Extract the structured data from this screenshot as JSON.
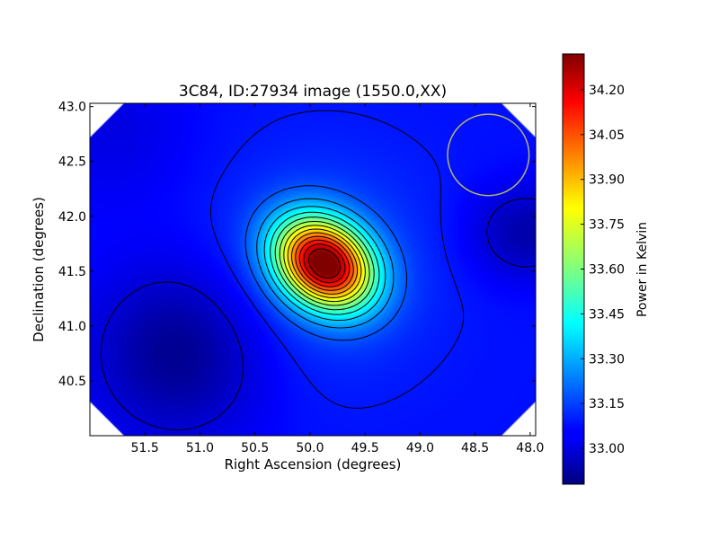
{
  "chart_data": {
    "type": "heatmap",
    "title": "3C84, ID:27934 image (1550.0,XX)",
    "xlabel": "Right Ascension (degrees)",
    "ylabel": "Declination (degrees)",
    "xlim": [
      52.0,
      47.95
    ],
    "ylim": [
      40.0,
      43.03
    ],
    "x_ticks": [
      {
        "value": 51.5,
        "label": "51.5"
      },
      {
        "value": 51.0,
        "label": "51.0"
      },
      {
        "value": 50.5,
        "label": "50.5"
      },
      {
        "value": 50.0,
        "label": "50.0"
      },
      {
        "value": 49.5,
        "label": "49.5"
      },
      {
        "value": 49.0,
        "label": "49.0"
      },
      {
        "value": 48.5,
        "label": "48.5"
      },
      {
        "value": 48.0,
        "label": "48.0"
      }
    ],
    "y_ticks": [
      {
        "value": 40.5,
        "label": "40.5"
      },
      {
        "value": 41.0,
        "label": "41.0"
      },
      {
        "value": 41.5,
        "label": "41.5"
      },
      {
        "value": 42.0,
        "label": "42.0"
      },
      {
        "value": 42.5,
        "label": "42.5"
      },
      {
        "value": 43.0,
        "label": "43.0"
      }
    ],
    "peak": {
      "ra": 49.87,
      "dec": 41.57,
      "value": 34.3
    },
    "background_level": 33.08,
    "beam": {
      "ra": 48.38,
      "dec": 42.56,
      "radius_deg": 0.37,
      "color": "#b5b56a"
    },
    "colorbar": {
      "label": "Power in Kelvin",
      "colormap": "jet",
      "min": 32.88,
      "max": 34.32,
      "ticks": [
        {
          "value": 33.0,
          "label": "33.00"
        },
        {
          "value": 33.15,
          "label": "33.15"
        },
        {
          "value": 33.3,
          "label": "33.30"
        },
        {
          "value": 33.45,
          "label": "33.45"
        },
        {
          "value": 33.6,
          "label": "33.60"
        },
        {
          "value": 33.75,
          "label": "33.75"
        },
        {
          "value": 33.9,
          "label": "33.90"
        },
        {
          "value": 34.05,
          "label": "34.05"
        },
        {
          "value": 34.2,
          "label": "34.20"
        }
      ]
    },
    "grid": false
  }
}
